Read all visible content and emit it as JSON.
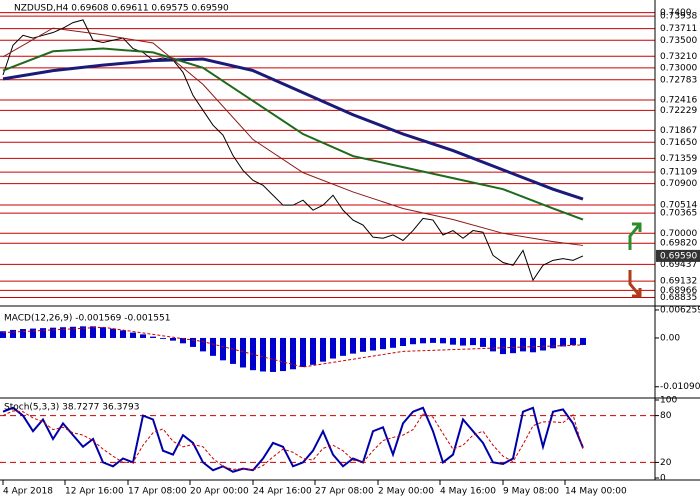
{
  "chart_data": [
    {
      "type": "line",
      "title": "NZDUSD,H4  0.69608 0.69611 0.69575 0.69590",
      "ylim": [
        0.687,
        0.7423
      ],
      "yticks": [
        {
          "value": 0.74,
          "label": "0.7400"
        },
        {
          "value": 0.73938,
          "label": "0.73938"
        },
        {
          "value": 0.73711,
          "label": "0.73711"
        },
        {
          "value": 0.735,
          "label": "0.73500"
        },
        {
          "value": 0.7321,
          "label": "0.73210"
        },
        {
          "value": 0.73,
          "label": "0.73000"
        },
        {
          "value": 0.72783,
          "label": "0.72783"
        },
        {
          "value": 0.72416,
          "label": "0.72416"
        },
        {
          "value": 0.72229,
          "label": "0.72229"
        },
        {
          "value": 0.71867,
          "label": "0.71867"
        },
        {
          "value": 0.7165,
          "label": "0.71650"
        },
        {
          "value": 0.71359,
          "label": "0.71359"
        },
        {
          "value": 0.71109,
          "label": "0.71109"
        },
        {
          "value": 0.709,
          "label": "0.70900"
        },
        {
          "value": 0.70514,
          "label": "0.70514"
        },
        {
          "value": 0.70365,
          "label": "0.70365"
        },
        {
          "value": 0.7,
          "label": "0.70000"
        },
        {
          "value": 0.6982,
          "label": "0.69820"
        },
        {
          "value": 0.69437,
          "label": "0.69437"
        },
        {
          "value": 0.69132,
          "label": "0.69132"
        },
        {
          "value": 0.68966,
          "label": "0.68966"
        },
        {
          "value": 0.68835,
          "label": "0.68835"
        }
      ],
      "grid": true,
      "grid_color": "#cc0000",
      "last_price": {
        "value": 0.6959,
        "label": "0.69590"
      },
      "series": [
        {
          "style": "line",
          "color": "#000000",
          "values": [
            0.7287,
            0.7341,
            0.7359,
            0.7354,
            0.7359,
            0.7364,
            0.7372,
            0.7382,
            0.7387,
            0.735,
            0.7346,
            0.735,
            0.7354,
            0.7335,
            0.7328,
            0.7314,
            0.7318,
            0.7314,
            0.7292,
            0.725,
            0.7223,
            0.7196,
            0.7178,
            0.7141,
            0.7114,
            0.7096,
            0.7087,
            0.7069,
            0.7051,
            0.7051,
            0.706,
            0.7042,
            0.7051,
            0.7069,
            0.7042,
            0.7024,
            0.7015,
            0.6993,
            0.6991,
            0.6997,
            0.6987,
            0.7005,
            0.7027,
            0.7024,
            0.6997,
            0.7005,
            0.6991,
            0.7005,
            0.7002,
            0.696,
            0.6947,
            0.6942,
            0.6969,
            0.6915,
            0.6942,
            0.6951,
            0.6954,
            0.6951,
            0.6959
          ]
        },
        {
          "style": "line",
          "color": "#1a1a7a",
          "width": 3,
          "x": [
            0,
            5,
            10,
            15,
            20,
            25,
            30,
            35,
            40,
            45,
            50,
            55,
            58
          ],
          "values": [
            0.728,
            0.7295,
            0.7305,
            0.7313,
            0.7316,
            0.7295,
            0.7255,
            0.7215,
            0.718,
            0.715,
            0.7115,
            0.708,
            0.7062
          ]
        },
        {
          "style": "line",
          "color": "#1e6b1e",
          "width": 2,
          "x": [
            0,
            5,
            10,
            15,
            20,
            25,
            30,
            35,
            40,
            45,
            50,
            55,
            58
          ],
          "values": [
            0.7295,
            0.733,
            0.7335,
            0.7328,
            0.73,
            0.724,
            0.718,
            0.714,
            0.712,
            0.71,
            0.708,
            0.7045,
            0.7025
          ]
        },
        {
          "style": "line",
          "color": "#8b1a1a",
          "width": 1,
          "x": [
            0,
            5,
            10,
            15,
            20,
            25,
            30,
            35,
            40,
            45,
            50,
            55,
            58
          ],
          "values": [
            0.732,
            0.7372,
            0.736,
            0.7345,
            0.727,
            0.717,
            0.711,
            0.7075,
            0.7045,
            0.7025,
            0.7,
            0.6985,
            0.6978
          ]
        }
      ]
    },
    {
      "type": "bar",
      "label": "MACD(12,26,9) -0.001569 -0.001551",
      "ylim": [
        -0.0132,
        0.0067
      ],
      "yticks": [
        0.006259,
        {
          "value": 0,
          "label": "0.00"
        },
        -0.010906
      ],
      "series": [
        {
          "style": "bar",
          "color": "#0000cc",
          "values": [
            0.0015,
            0.0018,
            0.002,
            0.0021,
            0.0022,
            0.0023,
            0.0024,
            0.0025,
            0.0026,
            0.0026,
            0.0024,
            0.0021,
            0.0017,
            0.0012,
            0.0008,
            0.0003,
            -0.0002,
            -0.0006,
            -0.0012,
            -0.002,
            -0.003,
            -0.004,
            -0.005,
            -0.0058,
            -0.0066,
            -0.0072,
            -0.0075,
            -0.0076,
            -0.0074,
            -0.007,
            -0.0065,
            -0.006,
            -0.0053,
            -0.0046,
            -0.004,
            -0.0035,
            -0.0031,
            -0.0028,
            -0.0025,
            -0.0022,
            -0.0018,
            -0.0014,
            -0.0012,
            -0.0011,
            -0.0012,
            -0.0015,
            -0.0017,
            -0.0016,
            -0.002,
            -0.003,
            -0.0036,
            -0.0034,
            -0.003,
            -0.0032,
            -0.0028,
            -0.0023,
            -0.0019,
            -0.0016,
            -0.001569
          ]
        },
        {
          "style": "dotted",
          "color": "#cc0000",
          "x": [
            0,
            10,
            20,
            30,
            40,
            50,
            58
          ],
          "values": [
            0.0012,
            0.0024,
            -0.0008,
            -0.0065,
            -0.003,
            -0.0022,
            -0.001551
          ]
        }
      ]
    },
    {
      "type": "line",
      "label": "Stoch(5,3,3) 38.7277 36.3793",
      "ylim": [
        0,
        100
      ],
      "yticks": [
        100,
        80,
        20,
        0
      ],
      "levels": [
        80,
        20
      ],
      "series": [
        {
          "style": "line",
          "color": "#0000aa",
          "width": 2,
          "values": [
            85,
            90,
            80,
            60,
            75,
            50,
            70,
            55,
            40,
            50,
            20,
            15,
            25,
            20,
            80,
            75,
            35,
            30,
            55,
            45,
            20,
            10,
            15,
            8,
            12,
            10,
            25,
            45,
            40,
            15,
            20,
            35,
            60,
            30,
            15,
            25,
            20,
            60,
            65,
            30,
            70,
            85,
            90,
            60,
            20,
            30,
            75,
            60,
            45,
            20,
            18,
            25,
            85,
            90,
            40,
            85,
            88,
            70,
            38.7277
          ]
        },
        {
          "style": "dotted",
          "color": "#cc0000",
          "values": [
            80,
            86,
            85,
            77,
            72,
            62,
            65,
            58,
            55,
            48,
            37,
            28,
            20,
            20,
            42,
            58,
            63,
            47,
            40,
            43,
            40,
            25,
            15,
            11,
            12,
            10,
            16,
            27,
            37,
            33,
            25,
            23,
            38,
            42,
            35,
            23,
            20,
            35,
            48,
            52,
            55,
            62,
            82,
            78,
            57,
            37,
            42,
            55,
            60,
            42,
            28,
            21,
            43,
            67,
            72,
            72,
            71,
            81,
            36.3793
          ]
        }
      ],
      "xticks": [
        {
          "value": 0,
          "label": "4 Apr 2018"
        },
        {
          "value": 6.2,
          "label": "12 Apr 16:00"
        },
        {
          "value": 12.5,
          "label": "17 Apr 08:00"
        },
        {
          "value": 18.7,
          "label": "20 Apr 00:00"
        },
        {
          "value": 25,
          "label": "24 Apr 16:00"
        },
        {
          "value": 31.2,
          "label": "27 Apr 08:00"
        },
        {
          "value": 37.5,
          "label": "2 May 00:00"
        },
        {
          "value": 43.7,
          "label": "4 May 16:00"
        },
        {
          "value": 50,
          "label": "9 May 08:00"
        },
        {
          "value": 56.2,
          "label": "14 May 00:00"
        }
      ]
    }
  ]
}
